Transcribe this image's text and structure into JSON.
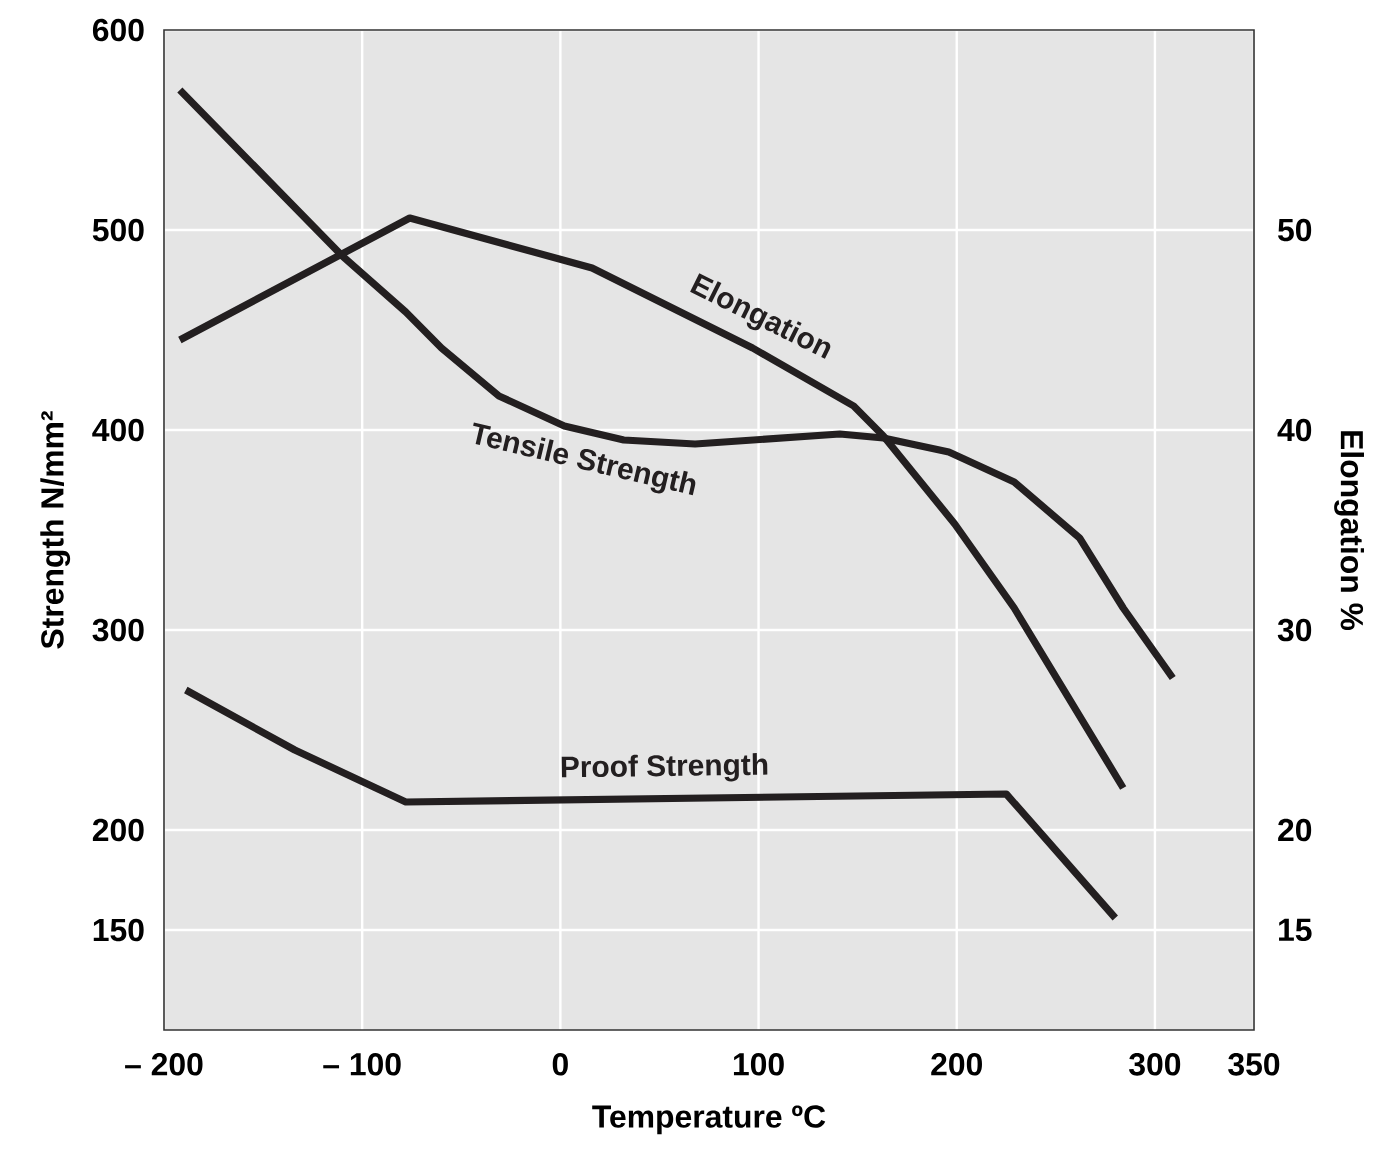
{
  "chart_data": {
    "type": "line",
    "xlabel": "Temperature ºC",
    "ylabel": "Strength N/mm²",
    "y2label": "Elongation %",
    "xlim": [
      -200,
      350
    ],
    "xticks": [
      {
        "value": -200,
        "label": "– 200"
      },
      {
        "value": -100,
        "label": "– 100"
      },
      0,
      100,
      200,
      300,
      350
    ],
    "ylim": [
      100,
      600
    ],
    "yticks": [
      150,
      200,
      300,
      400,
      500,
      600
    ],
    "y2lim": [
      10,
      60
    ],
    "y2ticks": [
      15,
      20,
      30,
      40,
      50
    ],
    "grid": true,
    "line_style": "solid",
    "series": [
      {
        "name": "Tensile Strength",
        "color": "#231f20",
        "x": [
          -192,
          -110,
          -78,
          -60,
          -31,
          2,
          32,
          68,
          141,
          163,
          196,
          229,
          262,
          284,
          309
        ],
        "values": [
          570,
          487,
          459,
          441,
          417,
          402,
          395,
          393,
          398,
          396,
          389,
          374,
          346,
          311,
          276
        ]
      },
      {
        "name": "Elongation",
        "color": "#231f20",
        "axis": "y2",
        "x": [
          -192,
          -76,
          16,
          97,
          148,
          163,
          199,
          229,
          284
        ],
        "values": [
          44.5,
          50.6,
          48.1,
          44.1,
          41.2,
          39.7,
          35.3,
          31.1,
          22.1
        ]
      },
      {
        "name": "Proof Strength",
        "color": "#231f20",
        "x": [
          -189,
          -134,
          -78,
          225,
          280
        ],
        "values": [
          270,
          240,
          214,
          218,
          156
        ]
      }
    ]
  }
}
